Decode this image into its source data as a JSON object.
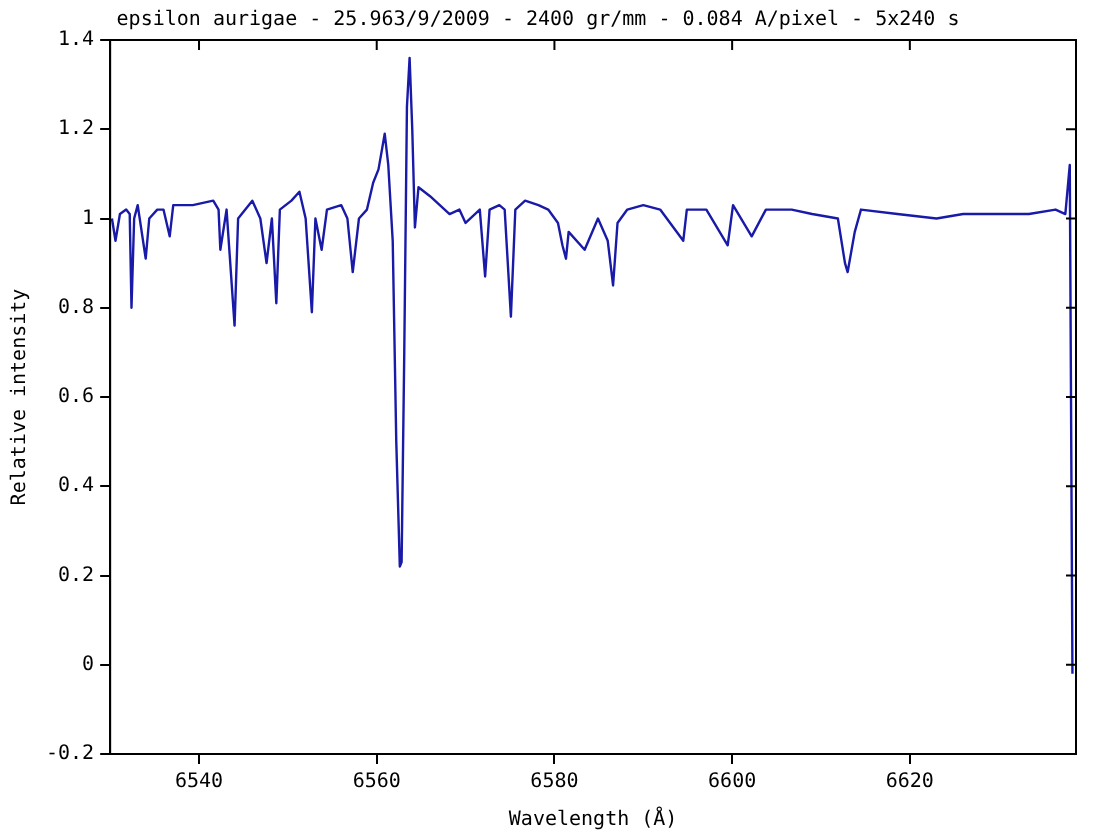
{
  "chart_data": {
    "type": "line",
    "title": "epsilon aurigae - 25.963/9/2009 - 2400 gr/mm - 0.084 A/pixel - 5x240 s",
    "xlabel": "Wavelength (Å)",
    "ylabel": "Relative intensity",
    "xlim": [
      6530,
      6638.7
    ],
    "xticks": [
      6540,
      6560,
      6580,
      6600,
      6620
    ],
    "ylim": [
      -0.2,
      1.4
    ],
    "yticks": [
      -0.2,
      0,
      0.2,
      0.4,
      0.6,
      0.8,
      1,
      1.2,
      1.4
    ],
    "grid": false,
    "legend": false,
    "marker": "none",
    "line_style": "solid",
    "series": [
      {
        "color": "#1a1aa8",
        "x": [
          6530.2,
          6530.6,
          6531.1,
          6531.8,
          6532.2,
          6532.4,
          6532.7,
          6533.1,
          6534.0,
          6534.4,
          6535.3,
          6536.0,
          6536.7,
          6537.1,
          6539.3,
          6541.6,
          6542.2,
          6542.4,
          6543.1,
          6544.0,
          6544.4,
          6546.0,
          6546.9,
          6547.6,
          6548.2,
          6548.7,
          6549.1,
          6550.4,
          6551.3,
          6552.0,
          6552.7,
          6553.1,
          6553.8,
          6554.4,
          6556.0,
          6556.7,
          6557.3,
          6558.0,
          6558.9,
          6559.6,
          6560.2,
          6560.9,
          6561.3,
          6561.8,
          6562.2,
          6562.6,
          6562.8,
          6563.1,
          6563.4,
          6563.7,
          6564.0,
          6564.3,
          6564.7,
          6566.0,
          6567.1,
          6568.2,
          6569.3,
          6570.0,
          6571.6,
          6572.2,
          6572.7,
          6573.8,
          6574.4,
          6575.1,
          6575.6,
          6576.7,
          6578.2,
          6579.3,
          6580.4,
          6580.9,
          6581.3,
          6581.6,
          6583.4,
          6584.9,
          6586.0,
          6586.6,
          6587.1,
          6588.2,
          6590.0,
          6591.9,
          6594.5,
          6594.9,
          6597.1,
          6599.5,
          6600.1,
          6602.2,
          6603.8,
          6606.7,
          6609.0,
          6611.9,
          6612.7,
          6613.0,
          6613.8,
          6614.5,
          6618.6,
          6623.0,
          6626.0,
          6629.7,
          6633.4,
          6636.4,
          6637.5,
          6638.0,
          6638.3
        ],
        "values": [
          1.0,
          0.95,
          1.01,
          1.02,
          1.01,
          0.8,
          1.0,
          1.03,
          0.91,
          1.0,
          1.02,
          1.02,
          0.96,
          1.03,
          1.03,
          1.04,
          1.02,
          0.93,
          1.02,
          0.76,
          1.0,
          1.04,
          1.0,
          0.9,
          1.0,
          0.81,
          1.02,
          1.04,
          1.06,
          1.0,
          0.79,
          1.0,
          0.93,
          1.02,
          1.03,
          1.0,
          0.88,
          1.0,
          1.02,
          1.08,
          1.11,
          1.19,
          1.12,
          0.95,
          0.5,
          0.22,
          0.23,
          0.7,
          1.25,
          1.36,
          1.2,
          0.98,
          1.07,
          1.05,
          1.03,
          1.01,
          1.02,
          0.99,
          1.02,
          0.87,
          1.02,
          1.03,
          1.02,
          0.78,
          1.02,
          1.04,
          1.03,
          1.02,
          0.99,
          0.94,
          0.91,
          0.97,
          0.93,
          1.0,
          0.95,
          0.85,
          0.99,
          1.02,
          1.03,
          1.02,
          0.95,
          1.02,
          1.02,
          0.94,
          1.03,
          0.96,
          1.02,
          1.02,
          1.01,
          1.0,
          0.9,
          0.88,
          0.97,
          1.02,
          1.01,
          1.0,
          1.01,
          1.01,
          1.01,
          1.02,
          1.01,
          1.12,
          -0.02
        ]
      }
    ]
  }
}
